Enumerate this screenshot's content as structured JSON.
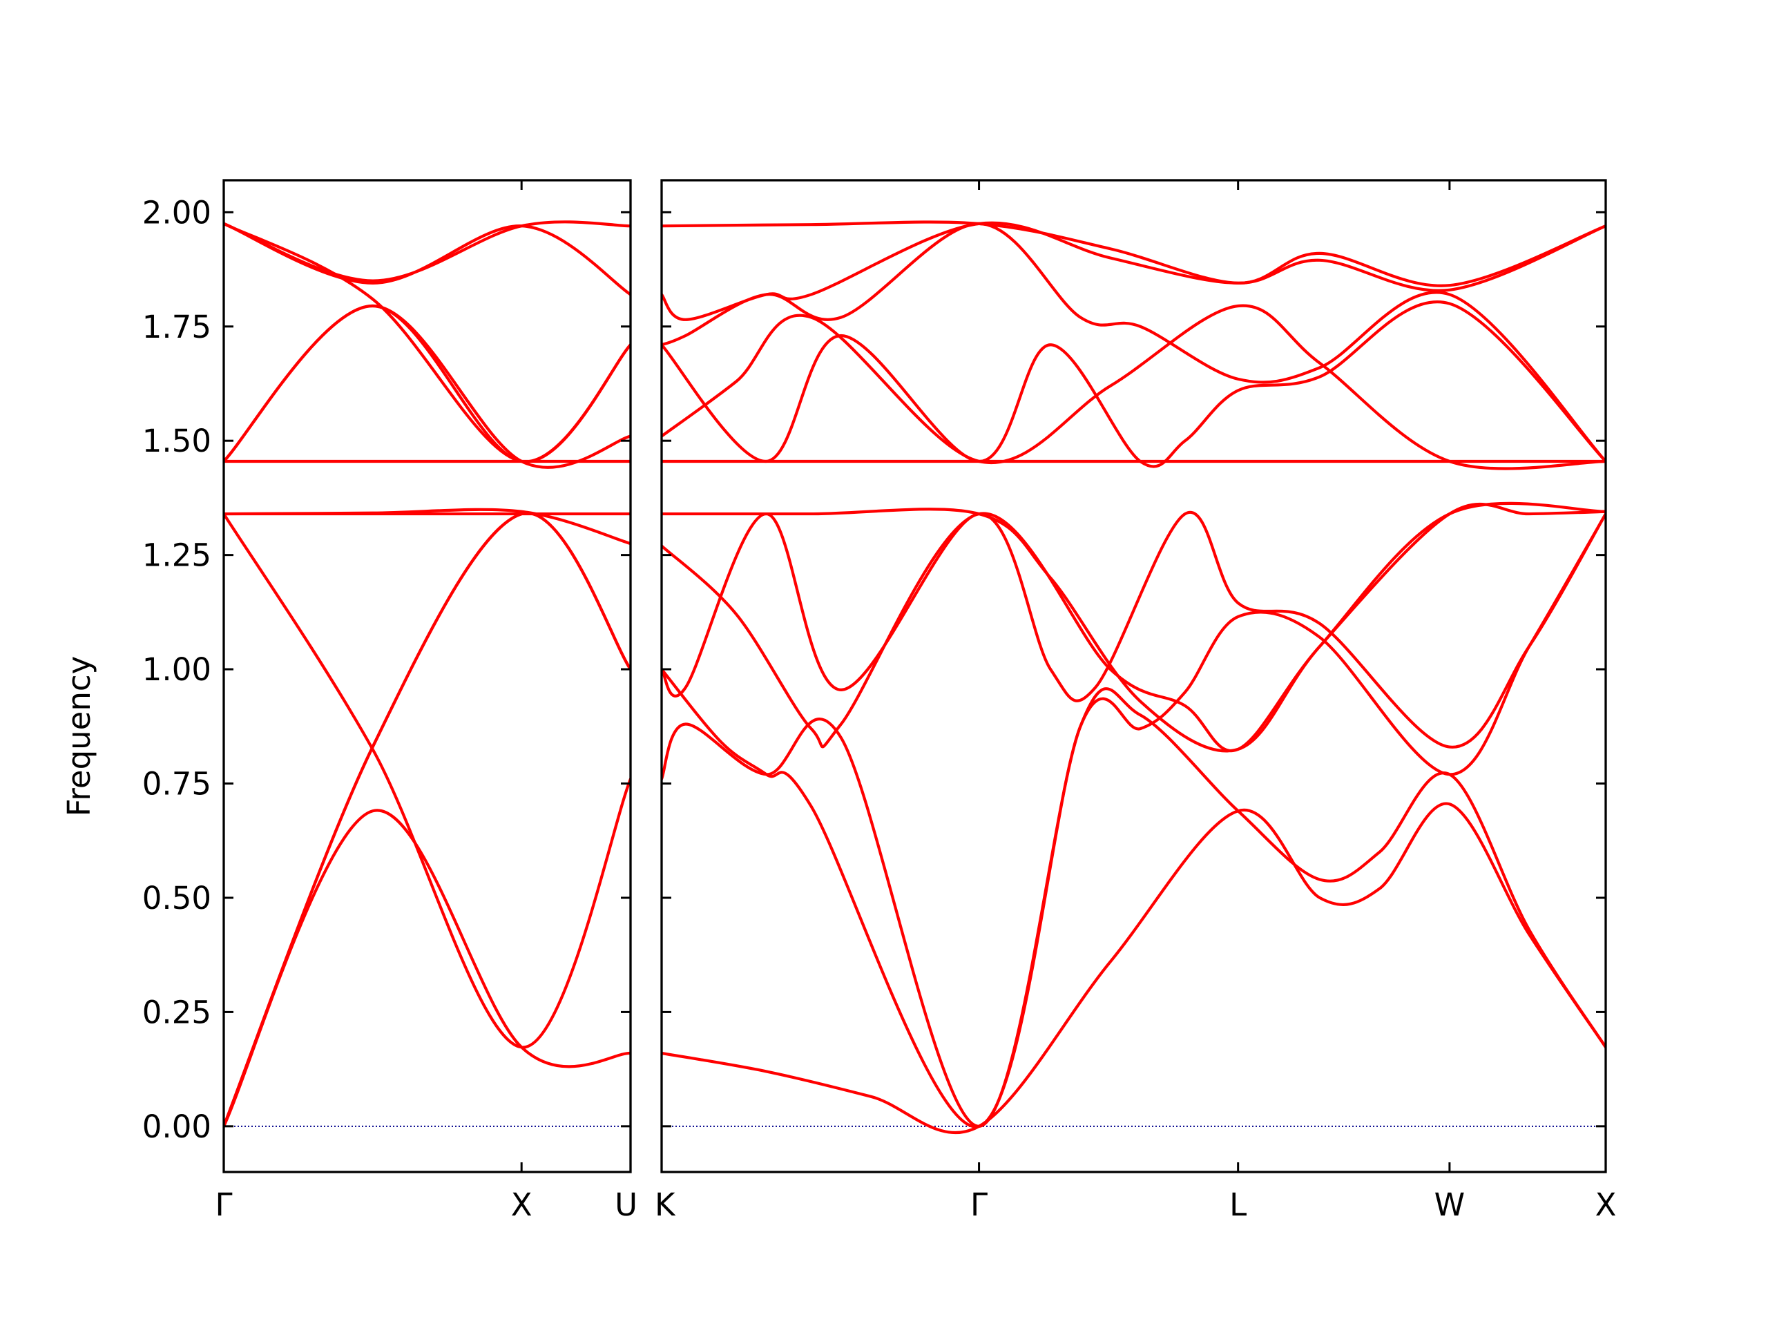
{
  "chart_data": {
    "type": "line",
    "title": "",
    "ylabel": "Frequency",
    "xlabel": "",
    "ylim": [
      -0.1,
      2.07
    ],
    "yticks": [
      0.0,
      0.25,
      0.5,
      0.75,
      1.0,
      1.25,
      1.5,
      1.75,
      2.0
    ],
    "ytick_labels": [
      "0.00",
      "0.25",
      "0.50",
      "0.75",
      "1.00",
      "1.25",
      "1.50",
      "1.75",
      "2.00"
    ],
    "grid": false,
    "legend": "none",
    "colors": {
      "bands": "#ff0000",
      "zero_line": "#00008b",
      "frame": "#000000"
    },
    "panels": [
      {
        "name": "Γ-X-U",
        "x_range": [
          0,
          1.366
        ],
        "high_symmetry_points": [
          {
            "label": "Γ",
            "x": 0
          },
          {
            "label": "X",
            "x": 1.0
          },
          {
            "label": "U",
            "x": 1.366
          }
        ],
        "bands": [
          [
            [
              0,
              0
            ],
            [
              0.5,
              0.69
            ],
            [
              1.0,
              0.173
            ],
            [
              1.366,
              0.16
            ]
          ],
          [
            [
              0,
              0
            ],
            [
              0.5,
              0.83
            ],
            [
              1.0,
              1.34
            ],
            [
              1.366,
              1.0
            ]
          ],
          [
            [
              0,
              0
            ],
            [
              0.5,
              0.83
            ],
            [
              1.0,
              1.34
            ],
            [
              1.366,
              1.0
            ]
          ],
          [
            [
              0,
              1.34
            ],
            [
              0.5,
              0.825
            ],
            [
              1.0,
              0.173
            ],
            [
              1.366,
              0.76
            ]
          ],
          [
            [
              0,
              1.34
            ],
            [
              0.5,
              1.342
            ],
            [
              1.0,
              1.345
            ],
            [
              1.366,
              1.275
            ]
          ],
          [
            [
              0,
              1.34
            ],
            [
              0.5,
              1.34
            ],
            [
              1.0,
              1.34
            ],
            [
              1.366,
              1.34
            ]
          ],
          [
            [
              0,
              1.455
            ],
            [
              0.5,
              1.455
            ],
            [
              1.0,
              1.455
            ],
            [
              1.366,
              1.455
            ]
          ],
          [
            [
              0,
              1.455
            ],
            [
              0.5,
              1.795
            ],
            [
              1.0,
              1.455
            ],
            [
              1.366,
              1.51
            ]
          ],
          [
            [
              0,
              1.455
            ],
            [
              0.5,
              1.795
            ],
            [
              1.0,
              1.455
            ],
            [
              1.366,
              1.71
            ]
          ],
          [
            [
              0,
              1.975
            ],
            [
              0.5,
              1.81
            ],
            [
              1.0,
              1.455
            ],
            [
              1.366,
              1.71
            ]
          ],
          [
            [
              0,
              1.975
            ],
            [
              0.5,
              1.845
            ],
            [
              1.0,
              1.97
            ],
            [
              1.366,
              1.82
            ]
          ],
          [
            [
              0,
              1.975
            ],
            [
              0.5,
              1.85
            ],
            [
              1.0,
              1.97
            ],
            [
              1.366,
              1.97
            ]
          ]
        ]
      },
      {
        "name": "K-Γ-L-W-X",
        "x_range": [
          0,
          3.156
        ],
        "high_symmetry_points": [
          {
            "label": "K",
            "x": 0
          },
          {
            "label": "Γ",
            "x": 1.061
          },
          {
            "label": "L",
            "x": 1.927
          },
          {
            "label": "W",
            "x": 2.634
          },
          {
            "label": "X",
            "x": 3.156
          }
        ],
        "bands": [
          [
            [
              0,
              0.16
            ],
            [
              0.35,
              0.12
            ],
            [
              0.7,
              0.065
            ],
            [
              1.061,
              0.0
            ],
            [
              1.5,
              0.36
            ],
            [
              1.927,
              0.69
            ],
            [
              2.2,
              0.5
            ],
            [
              2.4,
              0.52
            ],
            [
              2.634,
              0.705
            ],
            [
              2.9,
              0.42
            ],
            [
              3.156,
              0.173
            ]
          ],
          [
            [
              0,
              0.76
            ],
            [
              0.08,
              0.88
            ],
            [
              0.35,
              0.77
            ],
            [
              0.6,
              0.85
            ],
            [
              1.061,
              0.0
            ],
            [
              1.4,
              0.875
            ],
            [
              1.6,
              0.9
            ],
            [
              1.927,
              0.69
            ],
            [
              2.2,
              0.54
            ],
            [
              2.4,
              0.6
            ],
            [
              2.634,
              0.77
            ],
            [
              2.9,
              0.43
            ],
            [
              3.156,
              0.173
            ]
          ],
          [
            [
              0,
              1.0
            ],
            [
              0.2,
              0.84
            ],
            [
              0.35,
              0.77
            ],
            [
              0.5,
              0.7
            ],
            [
              1.061,
              0.0
            ],
            [
              1.4,
              0.875
            ],
            [
              1.6,
              0.87
            ],
            [
              1.75,
              0.95
            ],
            [
              1.927,
              1.115
            ],
            [
              2.2,
              1.07
            ],
            [
              2.634,
              0.77
            ],
            [
              2.9,
              1.05
            ],
            [
              3.156,
              1.34
            ]
          ],
          [
            [
              0,
              1.0
            ],
            [
              0.08,
              0.96
            ],
            [
              0.35,
              1.34
            ],
            [
              0.6,
              0.955
            ],
            [
              1.061,
              1.34
            ],
            [
              1.3,
              1.0
            ],
            [
              1.45,
              0.96
            ],
            [
              1.75,
              1.34
            ],
            [
              1.927,
              1.145
            ],
            [
              2.2,
              1.1
            ],
            [
              2.634,
              0.83
            ],
            [
              2.9,
              1.05
            ],
            [
              3.156,
              1.34
            ]
          ],
          [
            [
              0,
              1.27
            ],
            [
              0.25,
              1.12
            ],
            [
              0.5,
              0.87
            ],
            [
              0.6,
              0.88
            ],
            [
              1.061,
              1.34
            ],
            [
              1.5,
              1.0
            ],
            [
              1.75,
              0.92
            ],
            [
              1.927,
              0.825
            ],
            [
              2.2,
              1.05
            ],
            [
              2.634,
              1.34
            ],
            [
              2.9,
              1.34
            ],
            [
              3.156,
              1.345
            ]
          ],
          [
            [
              0,
              1.34
            ],
            [
              0.5,
              1.34
            ],
            [
              1.061,
              1.34
            ],
            [
              1.3,
              1.2
            ],
            [
              1.6,
              0.93
            ],
            [
              1.927,
              0.825
            ],
            [
              2.2,
              1.05
            ],
            [
              2.634,
              1.34
            ],
            [
              3.156,
              1.345
            ]
          ],
          [
            [
              0,
              1.455
            ],
            [
              0.5,
              1.455
            ],
            [
              1.061,
              1.455
            ],
            [
              1.927,
              1.455
            ],
            [
              2.634,
              1.455
            ],
            [
              3.156,
              1.455
            ]
          ],
          [
            [
              0,
              1.51
            ],
            [
              0.25,
              1.63
            ],
            [
              0.5,
              1.77
            ],
            [
              1.061,
              1.455
            ],
            [
              1.5,
              1.62
            ],
            [
              1.927,
              1.795
            ],
            [
              2.2,
              1.67
            ],
            [
              2.634,
              1.455
            ],
            [
              3.156,
              1.455
            ]
          ],
          [
            [
              0,
              1.71
            ],
            [
              0.35,
              1.455
            ],
            [
              0.6,
              1.73
            ],
            [
              1.061,
              1.455
            ],
            [
              1.3,
              1.71
            ],
            [
              1.6,
              1.455
            ],
            [
              1.75,
              1.5
            ],
            [
              1.927,
              1.61
            ],
            [
              2.2,
              1.64
            ],
            [
              2.634,
              1.8
            ],
            [
              3.156,
              1.455
            ]
          ],
          [
            [
              0,
              1.71
            ],
            [
              0.08,
              1.73
            ],
            [
              0.35,
              1.82
            ],
            [
              0.6,
              1.77
            ],
            [
              1.061,
              1.975
            ],
            [
              1.4,
              1.77
            ],
            [
              1.6,
              1.75
            ],
            [
              1.927,
              1.635
            ],
            [
              2.2,
              1.66
            ],
            [
              2.634,
              1.82
            ],
            [
              3.156,
              1.455
            ]
          ],
          [
            [
              0,
              1.82
            ],
            [
              0.08,
              1.765
            ],
            [
              0.35,
              1.82
            ],
            [
              0.5,
              1.82
            ],
            [
              1.061,
              1.975
            ],
            [
              1.5,
              1.9
            ],
            [
              1.927,
              1.845
            ],
            [
              2.2,
              1.895
            ],
            [
              2.634,
              1.83
            ],
            [
              3.156,
              1.97
            ]
          ],
          [
            [
              0,
              1.97
            ],
            [
              0.5,
              1.973
            ],
            [
              1.061,
              1.975
            ],
            [
              1.5,
              1.92
            ],
            [
              1.927,
              1.845
            ],
            [
              2.2,
              1.91
            ],
            [
              2.634,
              1.84
            ],
            [
              3.156,
              1.97
            ]
          ]
        ]
      }
    ]
  }
}
